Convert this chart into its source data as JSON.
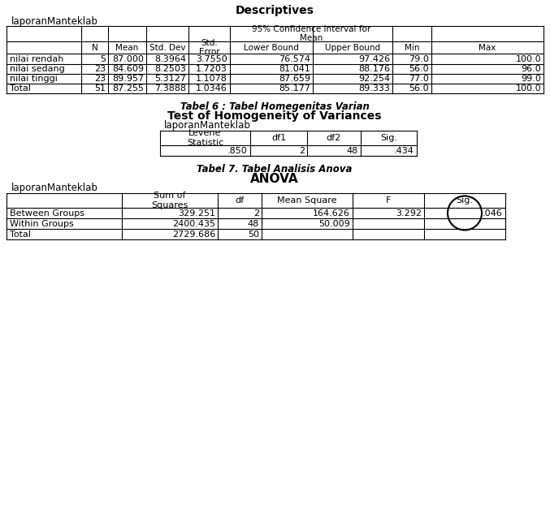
{
  "title1": "Descriptives",
  "label1": "laporanManteklab",
  "desc_rows": [
    [
      "nilai rendah",
      "5",
      "87.000",
      "8.3964",
      "3.7550",
      "76.574",
      "97.426",
      "79.0",
      "100.0"
    ],
    [
      "nilai sedang",
      "23",
      "84.609",
      "8.2503",
      "1.7203",
      "81.041",
      "88.176",
      "56.0",
      "96.0"
    ],
    [
      "nilai tinggi",
      "23",
      "89.957",
      "5.3127",
      "1.1078",
      "87.659",
      "92.254",
      "77.0",
      "99.0"
    ],
    [
      "Total",
      "51",
      "87.255",
      "7.3888",
      "1.0346",
      "85.177",
      "89.333",
      "56.0",
      "100.0"
    ]
  ],
  "title2_italic": "Tabel 6 : Tabel Homegenitas Varian",
  "title2_bold": "Test of Homogeneity of Variances",
  "label2": "laporanManteklab",
  "hom_row": [
    ".850",
    "2",
    "48",
    ".434"
  ],
  "title3_italic": "Tabel 7. Tabel Analisis Anova",
  "title3_bold": "ANOVA",
  "label3": "laporanManteklab",
  "anova_rows": [
    [
      "Between Groups",
      "329.251",
      "2",
      "164.626",
      "3.292",
      ".046"
    ],
    [
      "Within Groups",
      "2400.435",
      "48",
      "50.009",
      "",
      ""
    ],
    [
      "Total",
      "2729.686",
      "50",
      "",
      "",
      ""
    ]
  ],
  "bg_color": "#ffffff"
}
